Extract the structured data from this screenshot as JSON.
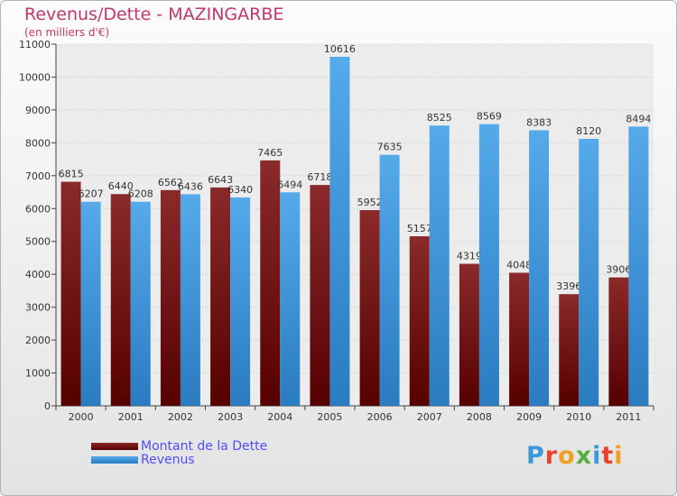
{
  "title": "Revenus/Dette - MAZINGARBE",
  "subtitle": "(en milliers d'€)",
  "logo": {
    "text": "Proxiti",
    "letters": [
      "P",
      "r",
      "o",
      "x",
      "i",
      "t",
      "i"
    ],
    "colors": [
      "#3a9ad9",
      "#e8432a",
      "#f0a020",
      "#55b040",
      "#3a9ad9",
      "#e8432a",
      "#f0a020"
    ]
  },
  "chart_data": {
    "type": "bar",
    "categories": [
      "2000",
      "2001",
      "2002",
      "2003",
      "2004",
      "2005",
      "2006",
      "2007",
      "2008",
      "2009",
      "2010",
      "2011"
    ],
    "series": [
      {
        "name": "Montant de la Dette",
        "values": [
          6815,
          6440,
          6562,
          6643,
          7465,
          6718,
          5952,
          5157,
          4319,
          4048,
          3396,
          3906
        ],
        "color": "#7a1a1a"
      },
      {
        "name": "Revenus",
        "values": [
          6207,
          6208,
          6436,
          6340,
          6494,
          10616,
          7635,
          8525,
          8569,
          8383,
          8120,
          8494
        ],
        "color": "#4a9fe0"
      }
    ],
    "y_ticks": [
      "0",
      "1000",
      "2000",
      "3000",
      "4000",
      "5000",
      "6000",
      "7000",
      "8000",
      "9000",
      "10000",
      "11000"
    ],
    "ylim": [
      0,
      11000
    ],
    "grid": true,
    "legend_position": "bottom-left"
  }
}
